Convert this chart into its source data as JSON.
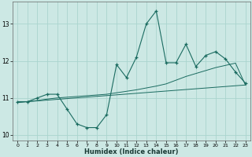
{
  "xlabel": "Humidex (Indice chaleur)",
  "background_color": "#cce8e4",
  "line_color": "#1a6b60",
  "grid_color": "#aad4ce",
  "xlim": [
    -0.5,
    23.5
  ],
  "ylim": [
    9.85,
    13.6
  ],
  "yticks": [
    10,
    11,
    12,
    13
  ],
  "xticks": [
    0,
    1,
    2,
    3,
    4,
    5,
    6,
    7,
    8,
    9,
    10,
    11,
    12,
    13,
    14,
    15,
    16,
    17,
    18,
    19,
    20,
    21,
    22,
    23
  ],
  "main_x": [
    0,
    1,
    2,
    3,
    4,
    5,
    6,
    7,
    8,
    9,
    10,
    11,
    12,
    13,
    14,
    15,
    16,
    17,
    18,
    19,
    20,
    21,
    22,
    23
  ],
  "main_y": [
    10.9,
    10.9,
    11.0,
    11.1,
    11.1,
    10.7,
    10.3,
    10.2,
    10.2,
    10.55,
    11.9,
    11.55,
    12.1,
    13.0,
    13.35,
    11.95,
    11.95,
    12.45,
    11.85,
    12.15,
    12.25,
    12.05,
    11.7,
    11.4
  ],
  "trend_x": [
    0,
    23
  ],
  "trend_y": [
    10.88,
    11.35
  ],
  "smooth_x": [
    0,
    1,
    2,
    3,
    4,
    5,
    6,
    7,
    8,
    9,
    10,
    11,
    12,
    13,
    14,
    15,
    16,
    17,
    18,
    19,
    20,
    21,
    22,
    23
  ],
  "smooth_y": [
    10.88,
    10.9,
    10.93,
    10.97,
    11.0,
    11.02,
    11.04,
    11.06,
    11.08,
    11.1,
    11.14,
    11.18,
    11.22,
    11.27,
    11.32,
    11.38,
    11.48,
    11.58,
    11.66,
    11.74,
    11.82,
    11.88,
    11.94,
    11.35
  ]
}
